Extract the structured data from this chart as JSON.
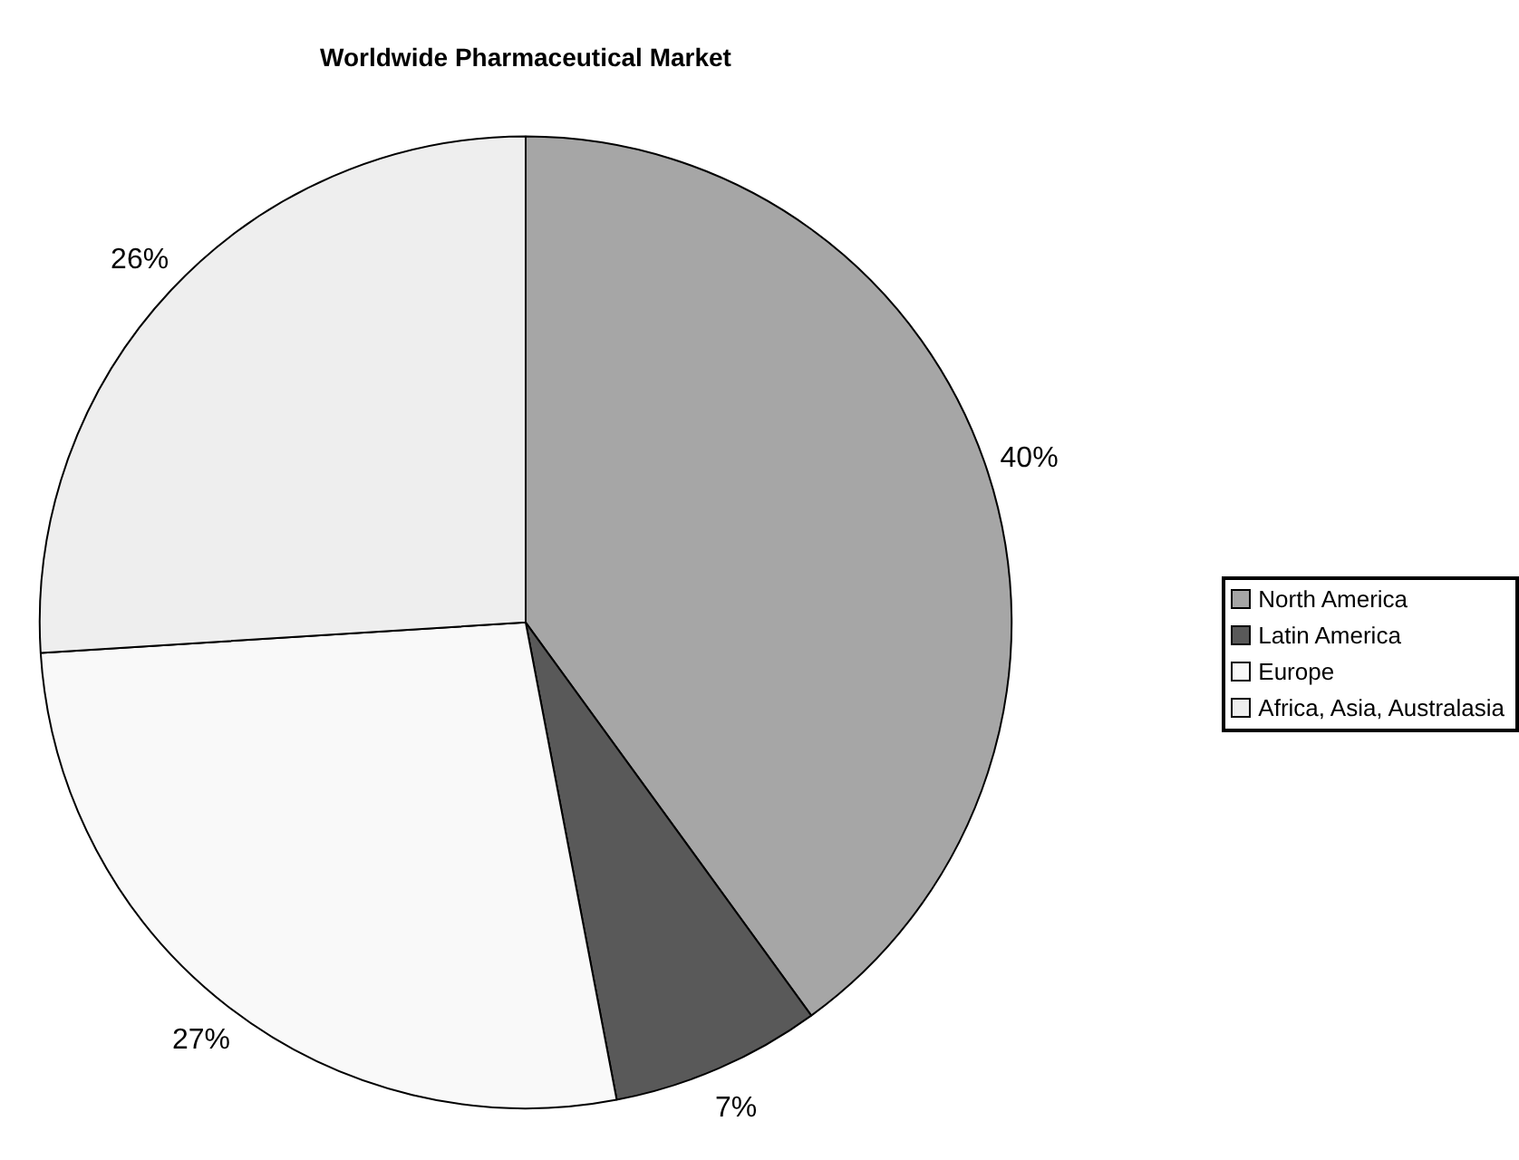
{
  "chart_data": {
    "type": "pie",
    "title": "Worldwide Pharmaceutical Market",
    "categories": [
      "North America",
      "Latin America",
      "Europe",
      "Africa, Asia, Australasia"
    ],
    "values": [
      40,
      7,
      27,
      26
    ],
    "colors": [
      "#a6a6a6",
      "#595959",
      "#f9f9f9",
      "#eeeeee"
    ],
    "value_labels": [
      "40%",
      "7%",
      "27%",
      "26%"
    ],
    "legend": "right"
  }
}
